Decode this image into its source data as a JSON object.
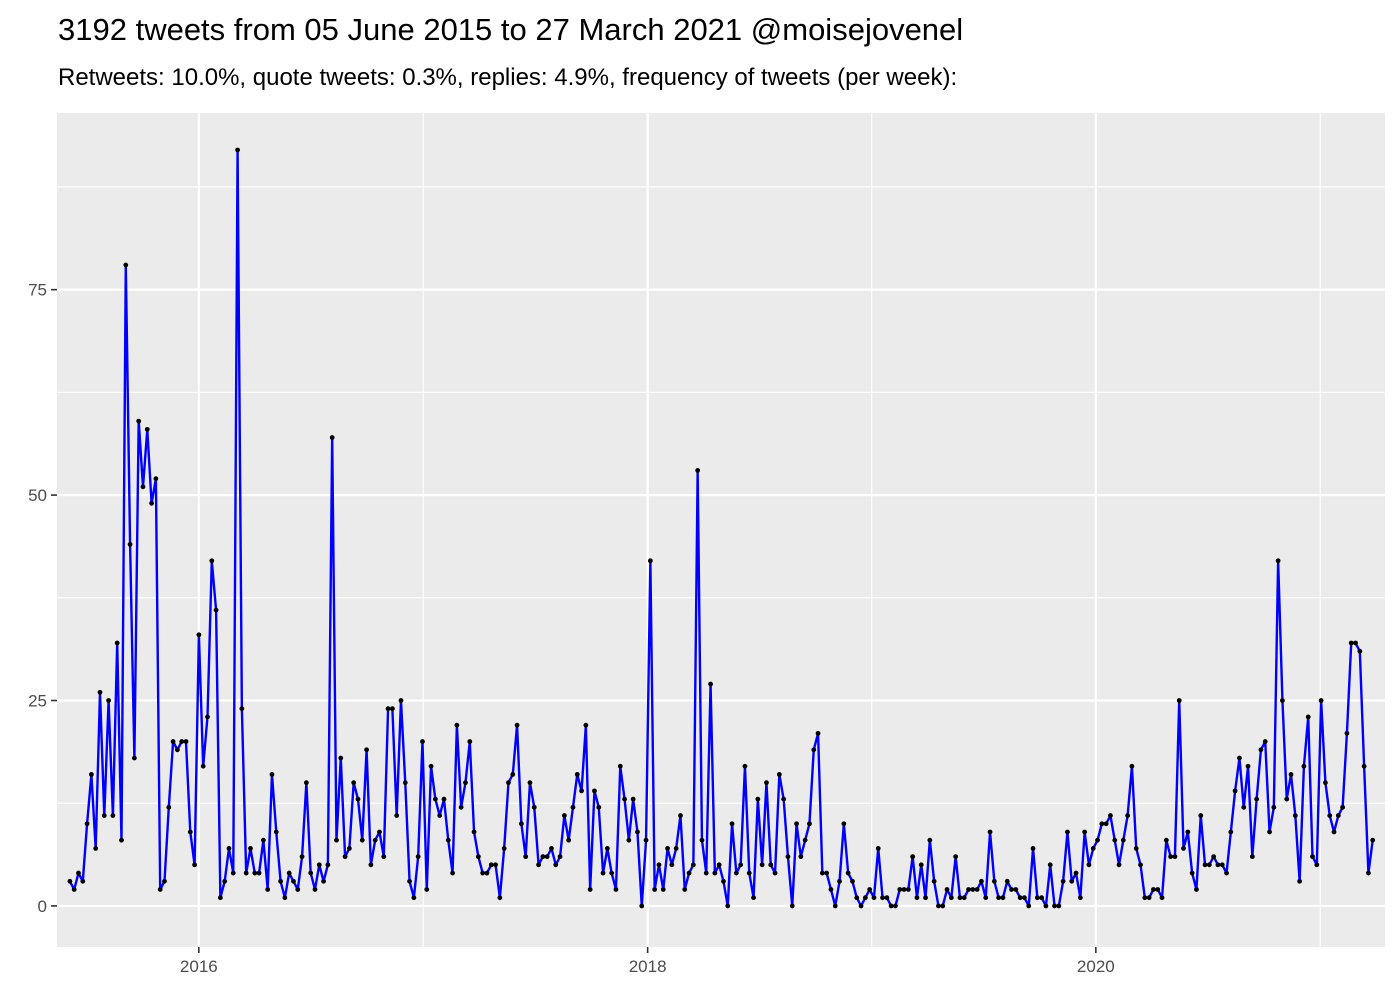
{
  "chart_data": {
    "type": "line",
    "title": "3192 tweets from 05 June 2015 to 27 March 2021 @moisejovenel",
    "subtitle": "Retweets: 10.0%, quote tweets: 0.3%, replies: 4.9%, frequency of tweets (per week):",
    "xlabel": "",
    "ylabel": "",
    "x_start": "2015-06-05",
    "x_end": "2021-03-27",
    "xlim": [
      "2015-05-15",
      "2021-04-16"
    ],
    "ylim": [
      -5,
      96.5
    ],
    "x_ticks": [
      {
        "label": "2016",
        "date": "2016-01-01"
      },
      {
        "label": "2018",
        "date": "2018-01-01"
      },
      {
        "label": "2020",
        "date": "2020-01-01"
      }
    ],
    "y_ticks": [
      0,
      25,
      50,
      75
    ],
    "grid": true,
    "line_color": "#0000ff",
    "point_color": "#000000",
    "panel_color": "#ebebeb",
    "grid_color": "#ffffff",
    "series": [
      {
        "values": [
          3,
          2,
          4,
          3,
          10,
          16,
          7,
          26,
          11,
          25,
          11,
          32,
          8,
          78,
          44,
          18,
          59,
          51,
          58,
          49,
          52,
          2,
          3,
          12,
          20,
          19,
          20,
          20,
          9,
          5,
          33,
          17,
          23,
          42,
          36,
          1,
          3,
          7,
          4,
          92,
          24,
          4,
          7,
          4,
          4,
          8,
          2,
          16,
          9,
          3,
          1,
          4,
          3,
          2,
          6,
          15,
          4,
          2,
          5,
          3,
          5,
          57,
          8,
          18,
          6,
          7,
          15,
          13,
          8,
          19,
          5,
          8,
          9,
          6,
          24,
          24,
          11,
          25,
          15,
          3,
          1,
          6,
          20,
          2,
          17,
          13,
          11,
          13,
          8,
          4,
          22,
          12,
          15,
          20,
          9,
          6,
          4,
          4,
          5,
          5,
          1,
          7,
          15,
          16,
          22,
          10,
          6,
          15,
          12,
          5,
          6,
          6,
          7,
          5,
          6,
          11,
          8,
          12,
          16,
          14,
          22,
          2,
          14,
          12,
          4,
          7,
          4,
          2,
          17,
          13,
          8,
          13,
          9,
          0,
          8,
          42,
          2,
          5,
          2,
          7,
          5,
          7,
          11,
          2,
          4,
          5,
          53,
          8,
          4,
          27,
          4,
          5,
          3,
          0,
          10,
          4,
          5,
          17,
          4,
          1,
          13,
          5,
          15,
          5,
          4,
          16,
          13,
          6,
          0,
          10,
          6,
          8,
          10,
          19,
          21,
          4,
          4,
          2,
          0,
          3,
          10,
          4,
          3,
          1,
          0,
          1,
          2,
          1,
          7,
          1,
          1,
          0,
          0,
          2,
          2,
          2,
          6,
          1,
          5,
          1,
          8,
          3,
          0,
          0,
          2,
          1,
          6,
          1,
          1,
          2,
          2,
          2,
          3,
          1,
          9,
          3,
          1,
          1,
          3,
          2,
          2,
          1,
          1,
          0,
          7,
          1,
          1,
          0,
          5,
          0,
          0,
          3,
          9,
          3,
          4,
          1,
          9,
          5,
          7,
          8,
          10,
          10,
          11,
          8,
          5,
          8,
          11,
          17,
          7,
          5,
          1,
          1,
          2,
          2,
          1,
          8,
          6,
          6,
          25,
          7,
          9,
          4,
          2,
          11,
          5,
          5,
          6,
          5,
          5,
          4,
          9,
          14,
          18,
          12,
          17,
          6,
          13,
          19,
          20,
          9,
          12,
          42,
          25,
          13,
          16,
          11,
          3,
          17,
          23,
          6,
          5,
          25,
          15,
          11,
          9,
          11,
          12,
          21,
          32,
          32,
          31,
          17,
          4,
          8
        ]
      }
    ]
  }
}
